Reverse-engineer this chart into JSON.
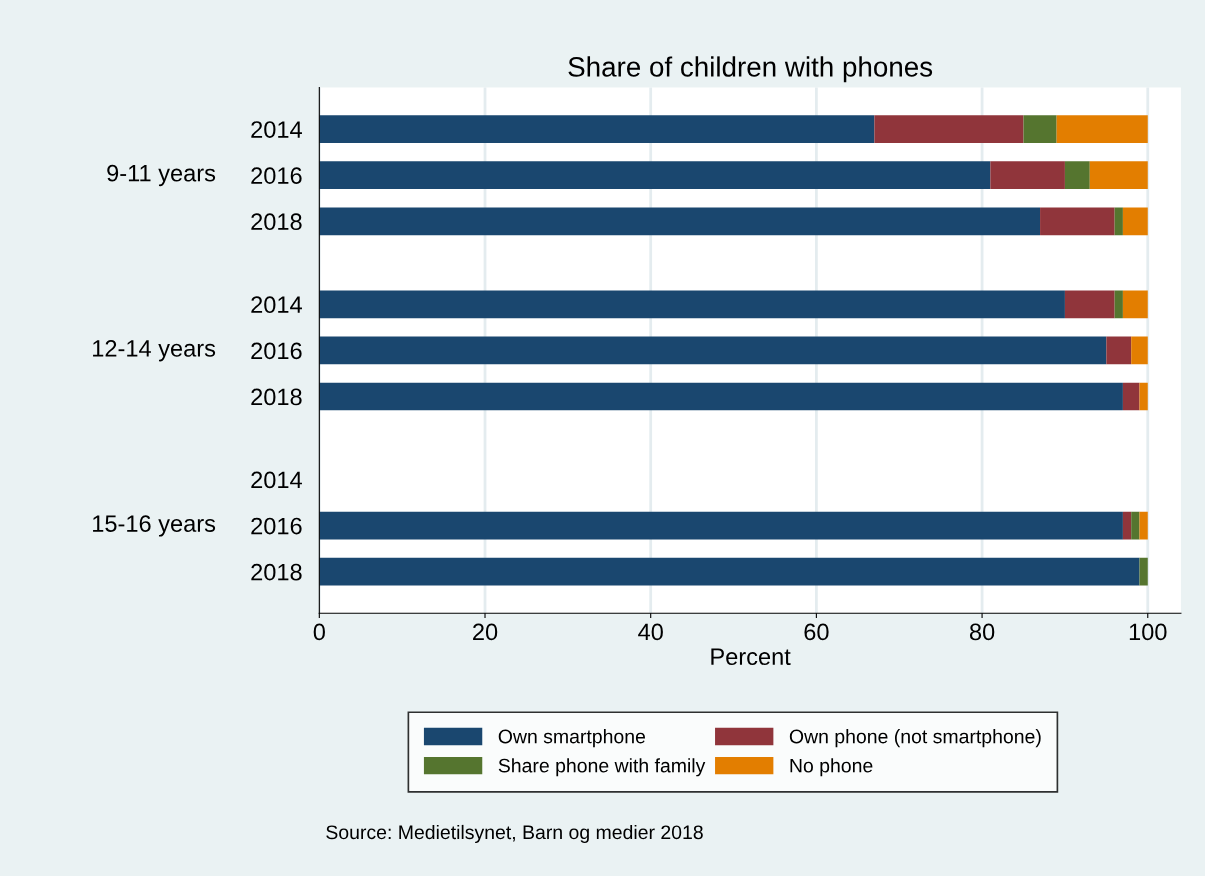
{
  "chart_data": {
    "type": "bar",
    "orientation": "horizontal",
    "stacked": true,
    "title": "Share of children with phones",
    "xlabel": "Percent",
    "categories": [
      "2014",
      "2016",
      "2018",
      "2014",
      "2016",
      "2018",
      "2014",
      "2016",
      "2018"
    ],
    "series": [
      {
        "name": "Own smartphone",
        "color": "#1a476f",
        "values": [
          67,
          81,
          87,
          90,
          95,
          97,
          null,
          97,
          99
        ]
      },
      {
        "name": "Own phone (not smartphone)",
        "color": "#90353b",
        "values": [
          18,
          9,
          9,
          6,
          3,
          2,
          null,
          1,
          0
        ]
      },
      {
        "name": "Share phone with family",
        "color": "#55752f",
        "values": [
          4,
          3,
          1,
          1,
          0,
          0,
          null,
          1,
          1
        ]
      },
      {
        "name": "No phone",
        "color": "#e37e00",
        "values": [
          11,
          7,
          3,
          3,
          2,
          1,
          null,
          1,
          0
        ]
      }
    ],
    "xlim": [
      0,
      104
    ],
    "xticks": [
      0,
      20,
      40,
      60,
      80,
      100
    ],
    "grid": "x",
    "legend": "bottom",
    "annotations": [
      "9-11 years",
      "12-14 years",
      "15-16 years",
      "Source: Medietilsynet, Barn og medier 2018"
    ]
  }
}
